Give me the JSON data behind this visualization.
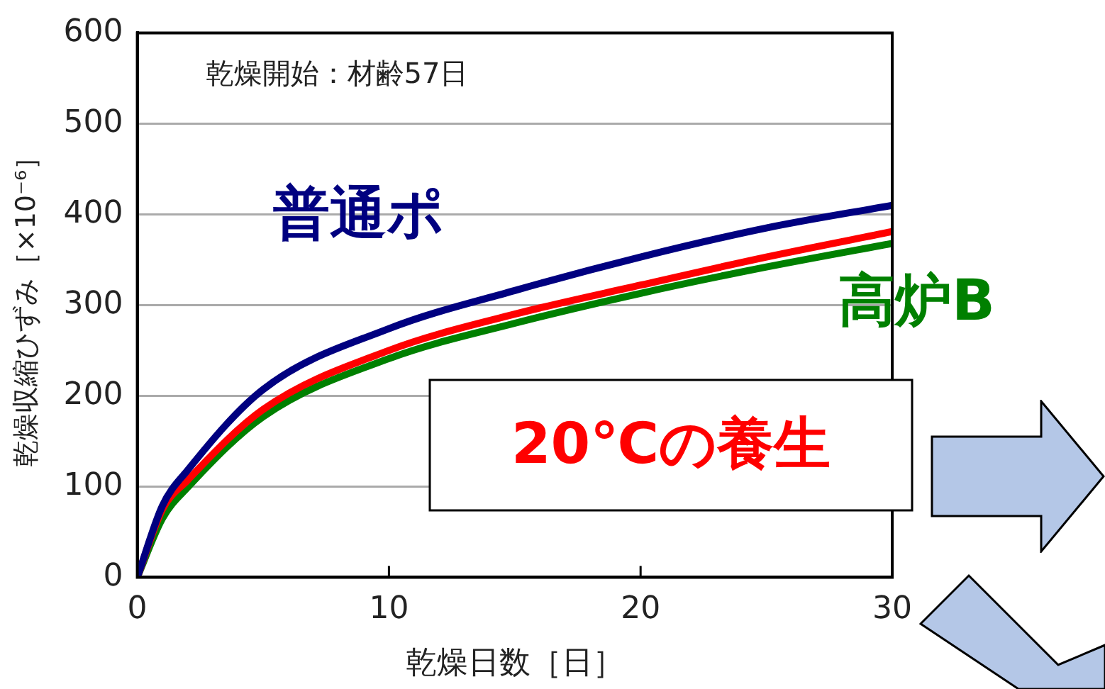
{
  "chart_data": {
    "type": "line",
    "xlabel": "乾燥日数［日］",
    "ylabel": "乾燥収縮ひずみ［×10⁻⁶］",
    "x": [
      0,
      1,
      2,
      5,
      10,
      15,
      20,
      25,
      30
    ],
    "series": [
      {
        "name": "普通ポ",
        "color": "#000080",
        "values": [
          0,
          79,
          118,
          207,
          274,
          316,
          353,
          385,
          410
        ]
      },
      {
        "color": "#ff0000",
        "values": [
          0,
          75,
          107,
          185,
          250,
          290,
          322,
          353,
          381
        ]
      },
      {
        "name": "高炉B",
        "color": "#008000",
        "values": [
          0,
          65,
          99,
          177,
          241,
          280,
          313,
          342,
          368
        ]
      }
    ],
    "xlim": [
      0,
      30
    ],
    "xticks": [
      0,
      10,
      20,
      30
    ],
    "ylim": [
      0,
      600
    ],
    "yticks": [
      0,
      100,
      200,
      300,
      400,
      500,
      600
    ],
    "grid": "y",
    "legend": false,
    "marker": "none",
    "line_style": "solid",
    "annotations": [
      "乾燥開始：材齢57日",
      "20℃の養生"
    ]
  }
}
